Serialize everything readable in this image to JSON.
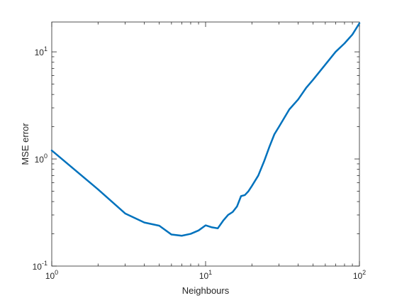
{
  "chart_data": {
    "type": "line",
    "title": "",
    "xlabel": "Neighbours",
    "ylabel": "MSE error",
    "xscale": "log",
    "yscale": "log",
    "xlim": [
      1,
      100
    ],
    "ylim": [
      0.1,
      19
    ],
    "grid": false,
    "line_color": "#0072BD",
    "x_ticks": [
      {
        "value": 1,
        "base": "10",
        "exp": "0"
      },
      {
        "value": 10,
        "base": "10",
        "exp": "1"
      },
      {
        "value": 100,
        "base": "10",
        "exp": "2"
      }
    ],
    "y_ticks": [
      {
        "value": 0.1,
        "base": "10",
        "exp": "-1"
      },
      {
        "value": 1,
        "base": "10",
        "exp": "0"
      },
      {
        "value": 10,
        "base": "10",
        "exp": "1"
      }
    ],
    "series": [
      {
        "x": [
          1,
          2,
          3,
          4,
          5,
          6,
          7,
          8,
          9,
          10,
          11,
          12,
          13,
          14,
          15,
          16,
          17,
          18,
          19,
          20,
          22,
          24,
          26,
          28,
          30,
          35,
          40,
          45,
          50,
          60,
          70,
          80,
          90,
          100
        ],
        "y": [
          1.2,
          0.52,
          0.31,
          0.255,
          0.238,
          0.197,
          0.192,
          0.2,
          0.215,
          0.24,
          0.23,
          0.225,
          0.265,
          0.3,
          0.32,
          0.36,
          0.45,
          0.46,
          0.5,
          0.56,
          0.7,
          0.95,
          1.3,
          1.7,
          2.0,
          2.9,
          3.6,
          4.6,
          5.5,
          7.6,
          10.0,
          12.0,
          14.5,
          18.5
        ]
      }
    ]
  }
}
